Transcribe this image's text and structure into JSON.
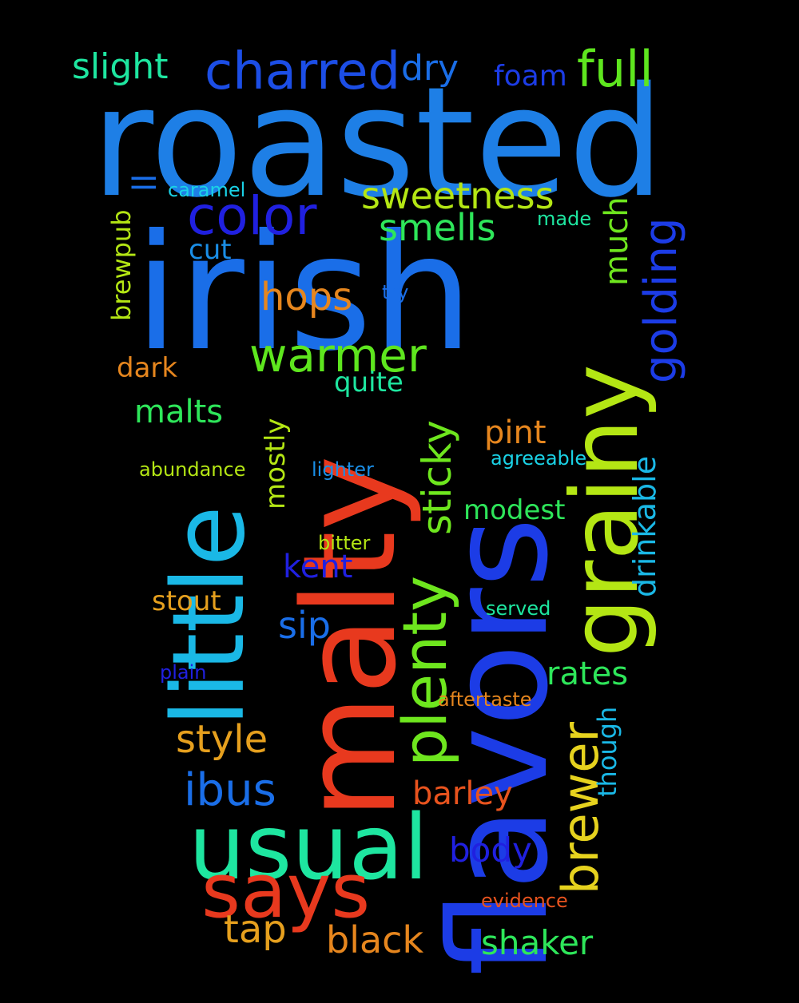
{
  "words": [
    {
      "text": "roasted",
      "color": "#1e7fe6",
      "vertical": false
    },
    {
      "text": "irish",
      "color": "#1a6ee8",
      "vertical": false
    },
    {
      "text": "flavors",
      "color": "#1c3ce6",
      "vertical": true
    },
    {
      "text": "malty",
      "color": "#e8391e",
      "vertical": true
    },
    {
      "text": "little",
      "color": "#1ab8e6",
      "vertical": true
    },
    {
      "text": "grainy",
      "color": "#b4e614",
      "vertical": true
    },
    {
      "text": "usual",
      "color": "#1ee6a0",
      "vertical": false
    },
    {
      "text": "says",
      "color": "#e8391e",
      "vertical": false
    },
    {
      "text": "plenty",
      "color": "#6ee61e",
      "vertical": true
    },
    {
      "text": "brewer",
      "color": "#e6d21e",
      "vertical": true
    },
    {
      "text": "charred",
      "color": "#1c4ee6",
      "vertical": false
    },
    {
      "text": "color",
      "color": "#2020e0",
      "vertical": false
    },
    {
      "text": "full",
      "color": "#5ee61e",
      "vertical": false
    },
    {
      "text": "warmer",
      "color": "#5ee61e",
      "vertical": false
    },
    {
      "text": "sweetness",
      "color": "#b4e614",
      "vertical": false
    },
    {
      "text": "sticky",
      "color": "#6ee61e",
      "vertical": true
    },
    {
      "text": "golding",
      "color": "#1c3ce6",
      "vertical": true
    },
    {
      "text": "slight",
      "color": "#1ee6a0",
      "vertical": false
    },
    {
      "text": "smells",
      "color": "#2ee65a",
      "vertical": false
    },
    {
      "text": "dry",
      "color": "#1a6ee8",
      "vertical": false
    },
    {
      "text": "ibus",
      "color": "#1a6ee8",
      "vertical": false
    },
    {
      "text": "style",
      "color": "#e6a01e",
      "vertical": false
    },
    {
      "text": "hops",
      "color": "#e6861e",
      "vertical": false
    },
    {
      "text": "drinkable",
      "color": "#1ab8e6",
      "vertical": true
    },
    {
      "text": "black",
      "color": "#e6861e",
      "vertical": false
    },
    {
      "text": "shaker",
      "color": "#2ee65a",
      "vertical": false
    },
    {
      "text": "barley",
      "color": "#e8531e",
      "vertical": false
    },
    {
      "text": "tap",
      "color": "#e6a01e",
      "vertical": false
    },
    {
      "text": "body",
      "color": "#2020e0",
      "vertical": false
    },
    {
      "text": "rates",
      "color": "#2ee65a",
      "vertical": false
    },
    {
      "text": "much",
      "color": "#6ee61e",
      "vertical": true
    },
    {
      "text": "mostly",
      "color": "#b4e614",
      "vertical": true
    },
    {
      "text": "foam",
      "color": "#1c3ce6",
      "vertical": false
    },
    {
      "text": "malts",
      "color": "#2ee65a",
      "vertical": false
    },
    {
      "text": "sip",
      "color": "#1a6ee8",
      "vertical": false
    },
    {
      "text": "kent",
      "color": "#2020e0",
      "vertical": false
    },
    {
      "text": "pint",
      "color": "#e6861e",
      "vertical": false
    },
    {
      "text": "modest",
      "color": "#2ee65a",
      "vertical": false
    },
    {
      "text": "stout",
      "color": "#e6a01e",
      "vertical": false
    },
    {
      "text": "quite",
      "color": "#1ee6a0",
      "vertical": false
    },
    {
      "text": "cut",
      "color": "#1a8ee6",
      "vertical": false
    },
    {
      "text": "dark",
      "color": "#e6861e",
      "vertical": false
    },
    {
      "text": "though",
      "color": "#1ab8e6",
      "vertical": true
    },
    {
      "text": "brewpub",
      "color": "#b4e614",
      "vertical": true
    },
    {
      "text": "ll",
      "color": "#1a6ee8",
      "vertical": true
    },
    {
      "text": "caramel",
      "color": "#1ad2e6",
      "vertical": false
    },
    {
      "text": "made",
      "color": "#1ee6a0",
      "vertical": false
    },
    {
      "text": "try",
      "color": "#1a6ee8",
      "vertical": false
    },
    {
      "text": "abundance",
      "color": "#b4e614",
      "vertical": false
    },
    {
      "text": "lighter",
      "color": "#1a8ee6",
      "vertical": false
    },
    {
      "text": "agreeable",
      "color": "#1ad2e6",
      "vertical": false
    },
    {
      "text": "bitter",
      "color": "#b4e614",
      "vertical": false
    },
    {
      "text": "served",
      "color": "#1ee6a0",
      "vertical": false
    },
    {
      "text": "plain",
      "color": "#2020e0",
      "vertical": false
    },
    {
      "text": "aftertaste",
      "color": "#e6861e",
      "vertical": false
    },
    {
      "text": "evidence",
      "color": "#e8531e",
      "vertical": false
    }
  ]
}
